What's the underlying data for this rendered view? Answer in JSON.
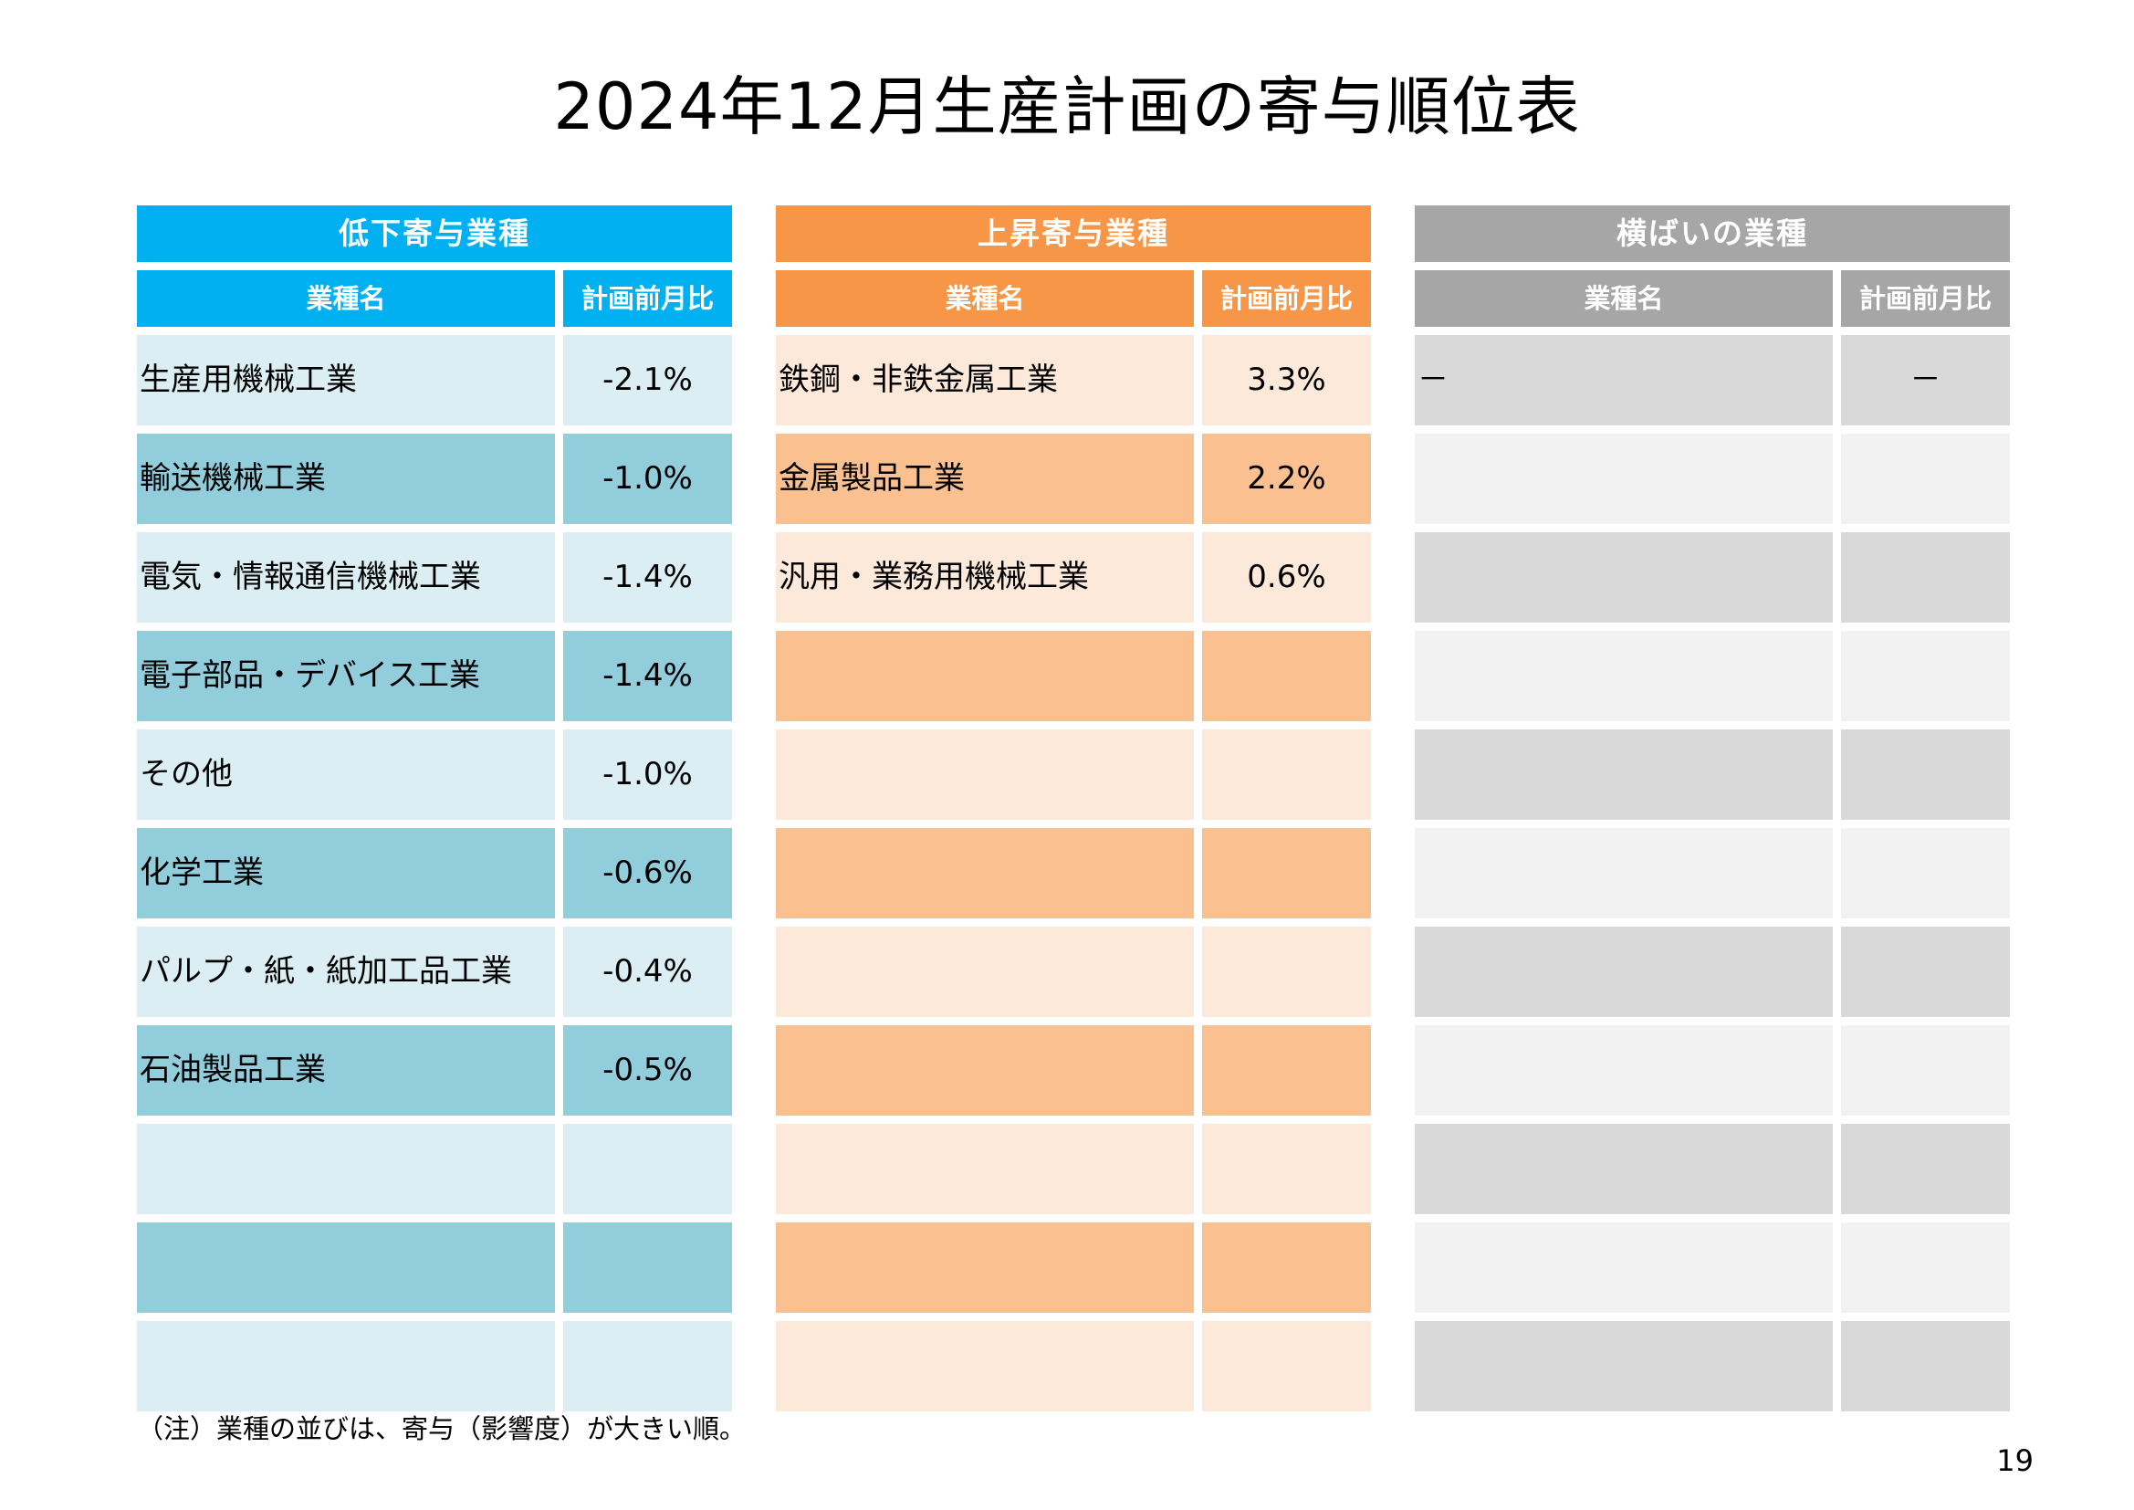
{
  "title": "2024年12月生産計画の寄与順位表",
  "tables": {
    "decline": {
      "header": "低下寄与業種",
      "col_name": "業種名",
      "col_ratio": "計画前月比",
      "rows": [
        {
          "name": "生産用機械工業",
          "value": "-2.1%"
        },
        {
          "name": "輸送機械工業",
          "value": "-1.0%"
        },
        {
          "name": "電気・情報通信機械工業",
          "value": "-1.4%"
        },
        {
          "name": "電子部品・デバイス工業",
          "value": "-1.4%"
        },
        {
          "name": "その他",
          "value": "-1.0%"
        },
        {
          "name": "化学工業",
          "value": "-0.6%"
        },
        {
          "name": "パルプ・紙・紙加工品工業",
          "value": "-0.4%"
        },
        {
          "name": "石油製品工業",
          "value": "-0.5%"
        },
        {
          "name": "",
          "value": ""
        },
        {
          "name": "",
          "value": ""
        },
        {
          "name": "",
          "value": ""
        }
      ]
    },
    "increase": {
      "header": "上昇寄与業種",
      "col_name": "業種名",
      "col_ratio": "計画前月比",
      "rows": [
        {
          "name": "鉄鋼・非鉄金属工業",
          "value": "3.3%"
        },
        {
          "name": "金属製品工業",
          "value": "2.2%"
        },
        {
          "name": "汎用・業務用機械工業",
          "value": "0.6%"
        },
        {
          "name": "",
          "value": ""
        },
        {
          "name": "",
          "value": ""
        },
        {
          "name": "",
          "value": ""
        },
        {
          "name": "",
          "value": ""
        },
        {
          "name": "",
          "value": ""
        },
        {
          "name": "",
          "value": ""
        },
        {
          "name": "",
          "value": ""
        },
        {
          "name": "",
          "value": ""
        }
      ]
    },
    "flat": {
      "header": "横ばいの業種",
      "col_name": "業種名",
      "col_ratio": "計画前月比",
      "rows": [
        {
          "name": "－",
          "value": "－"
        },
        {
          "name": "",
          "value": ""
        },
        {
          "name": "",
          "value": ""
        },
        {
          "name": "",
          "value": ""
        },
        {
          "name": "",
          "value": ""
        },
        {
          "name": "",
          "value": ""
        },
        {
          "name": "",
          "value": ""
        },
        {
          "name": "",
          "value": ""
        },
        {
          "name": "",
          "value": ""
        },
        {
          "name": "",
          "value": ""
        },
        {
          "name": "",
          "value": ""
        }
      ]
    }
  },
  "note": "（注）業種の並びは、寄与（影響度）が大きい順。",
  "page_number": "19",
  "colors": {
    "decline_header": "#00b0f0",
    "decline_row_light": "#daeef3",
    "decline_row_dark": "#92cddc",
    "increase_header": "#f79646",
    "increase_row_light": "#fde9d9",
    "increase_row_dark": "#fac090",
    "flat_header": "#a6a6a6",
    "flat_row_dark": "#d9d9d9",
    "flat_row_light": "#f2f2f2"
  }
}
